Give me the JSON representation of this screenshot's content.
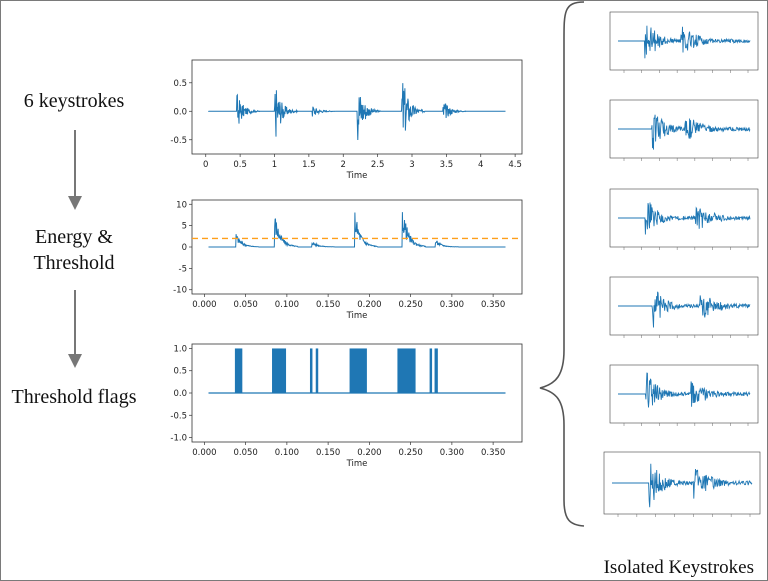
{
  "stages": {
    "keystrokes_label": "6 keystrokes",
    "energy_label_line1": "Energy &",
    "energy_label_line2": "Threshold",
    "flags_label": "Threshold flags"
  },
  "side_caption": "Isolated Keystrokes",
  "colors": {
    "signal": "#1f77b4",
    "threshold": "#ff9f1a",
    "arrow": "#777777"
  },
  "chart_data": [
    {
      "type": "line",
      "name": "waveform",
      "xlabel": "Time",
      "xlim": [
        -0.2,
        4.6
      ],
      "ylim": [
        -0.75,
        0.9
      ],
      "xticks": [
        "0",
        "0.5",
        "1",
        "1.5",
        "2",
        "2.5",
        "3",
        "3.5",
        "4",
        "4.5"
      ],
      "yticks": [
        "0.5",
        "0.0",
        "-0.5"
      ],
      "bursts": [
        {
          "t": 0.45,
          "amp": 0.35
        },
        {
          "t": 1.0,
          "amp": 0.6
        },
        {
          "t": 1.55,
          "amp": 0.12
        },
        {
          "t": 2.2,
          "amp": 0.65
        },
        {
          "t": 2.85,
          "amp": 0.75
        },
        {
          "t": 3.45,
          "amp": 0.22
        }
      ]
    },
    {
      "type": "line",
      "name": "energy",
      "xlabel": "Time",
      "xlim": [
        -0.015,
        0.385
      ],
      "ylim": [
        -11,
        11
      ],
      "threshold": 2,
      "xticks": [
        "0.000",
        "0.050",
        "0.100",
        "0.150",
        "0.200",
        "0.250",
        "0.300",
        "0.350"
      ],
      "yticks": [
        "10",
        "5",
        "0",
        "-5",
        "-10"
      ],
      "bursts": [
        {
          "t": 0.038,
          "amp": 3.6
        },
        {
          "t": 0.085,
          "amp": 8.8
        },
        {
          "t": 0.13,
          "amp": 1.6
        },
        {
          "t": 0.182,
          "amp": 9.3
        },
        {
          "t": 0.24,
          "amp": 10.2
        },
        {
          "t": 0.28,
          "amp": 1.9
        }
      ]
    },
    {
      "type": "line",
      "name": "flags",
      "xlabel": "Time",
      "xlim": [
        -0.015,
        0.385
      ],
      "ylim": [
        -1.1,
        1.1
      ],
      "xticks": [
        "0.000",
        "0.050",
        "0.100",
        "0.150",
        "0.200",
        "0.250",
        "0.300",
        "0.350"
      ],
      "yticks": [
        "1.0",
        "0.5",
        "0.0",
        "-0.5",
        "-1.0"
      ],
      "flags": [
        [
          0.037,
          0.046
        ],
        [
          0.082,
          0.099
        ],
        [
          0.128,
          0.131
        ],
        [
          0.135,
          0.138
        ],
        [
          0.176,
          0.197
        ],
        [
          0.234,
          0.256
        ],
        [
          0.273,
          0.276
        ],
        [
          0.279,
          0.283
        ]
      ]
    }
  ]
}
